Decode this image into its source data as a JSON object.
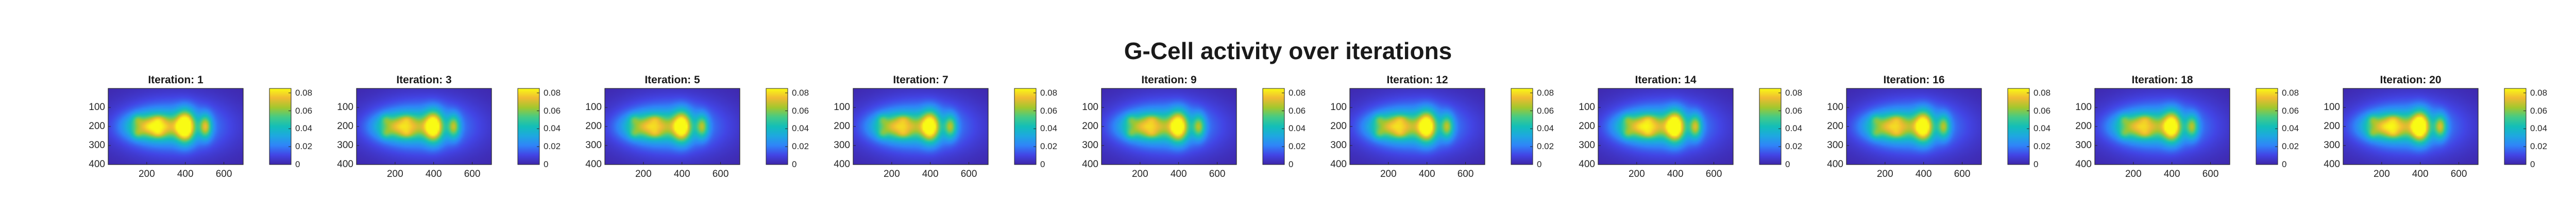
{
  "title": "G-Cell activity over iterations",
  "colors": {
    "colormap": [
      "#3e26a8",
      "#4245e5",
      "#2f84f8",
      "#1ea8e0",
      "#13beb8",
      "#45cb86",
      "#a3c72d",
      "#f0ba33",
      "#f9fb14"
    ],
    "axis": "#262626",
    "text": "#1a1a1a"
  },
  "chart_data": {
    "type": "heatmap",
    "title": "G-Cell activity over iterations",
    "x_ticks": [
      200,
      400,
      600
    ],
    "y_ticks": [
      100,
      200,
      300,
      400
    ],
    "xlim": [
      0,
      700
    ],
    "ylim": [
      0,
      400
    ],
    "colorbar_ticks": [
      "0",
      "0.02",
      "0.04",
      "0.06",
      "0.08"
    ],
    "colorbar_range": [
      0,
      0.085
    ],
    "panels": [
      {
        "label": "Iteration: 1",
        "iteration": 1,
        "peak": 0.085
      },
      {
        "label": "Iteration: 3",
        "iteration": 3,
        "peak": 0.075
      },
      {
        "label": "Iteration: 5",
        "iteration": 5,
        "peak": 0.073
      },
      {
        "label": "Iteration: 7",
        "iteration": 7,
        "peak": 0.072
      },
      {
        "label": "Iteration: 9",
        "iteration": 9,
        "peak": 0.072
      },
      {
        "label": "Iteration: 12",
        "iteration": 12,
        "peak": 0.074
      },
      {
        "label": "Iteration: 14",
        "iteration": 14,
        "peak": 0.08
      },
      {
        "label": "Iteration: 16",
        "iteration": 16,
        "peak": 0.072
      },
      {
        "label": "Iteration: 18",
        "iteration": 18,
        "peak": 0.072
      },
      {
        "label": "Iteration: 20",
        "iteration": 20,
        "peak": 0.08
      }
    ]
  }
}
